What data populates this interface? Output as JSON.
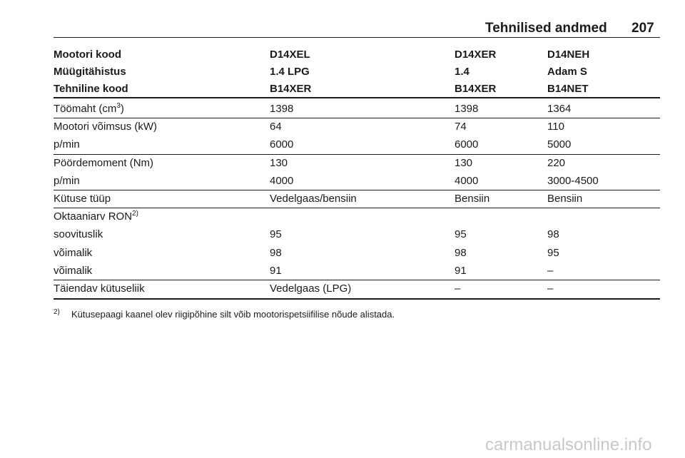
{
  "header": {
    "title": "Tehnilised andmed",
    "page": "207"
  },
  "table": {
    "head": [
      [
        "Mootori kood",
        "D14XEL",
        "D14XER",
        "D14NEH"
      ],
      [
        "Müügitähistus",
        "1.4 LPG",
        "1.4",
        "Adam S"
      ],
      [
        "Tehniline kood",
        "B14XER",
        "B14XER",
        "B14NET"
      ]
    ],
    "groups": [
      [
        [
          {
            "text": "Töömaht (cm",
            "sup": "3",
            "after": ")"
          },
          "1398",
          "1398",
          "1364"
        ]
      ],
      [
        [
          "Mootori võimsus (kW)",
          "64",
          "74",
          "110"
        ],
        [
          "p/min",
          "6000",
          "6000",
          "5000"
        ]
      ],
      [
        [
          "Pöördemoment (Nm)",
          "130",
          "130",
          "220"
        ],
        [
          "p/min",
          "4000",
          "4000",
          "3000-4500"
        ]
      ],
      [
        [
          "Kütuse tüüp",
          "Vedelgaas/bensiin",
          "Bensiin",
          "Bensiin"
        ]
      ],
      [
        [
          {
            "text": "Oktaaniarv RON",
            "sup": "2)"
          }
        ],
        [
          "soovituslik",
          "95",
          "95",
          "98"
        ],
        [
          "võimalik",
          "98",
          "98",
          "95"
        ],
        [
          "võimalik",
          "91",
          "91",
          "–"
        ]
      ],
      [
        [
          "Täiendav kütuseliik",
          "Vedelgaas (LPG)",
          "–",
          "–"
        ]
      ]
    ]
  },
  "footnote": {
    "mark": "2)",
    "text": "Kütusepaagi kaanel olev riigipõhine silt võib mootorispetsiifilise nõude alistada."
  },
  "watermark": "carmanualsonline.info"
}
